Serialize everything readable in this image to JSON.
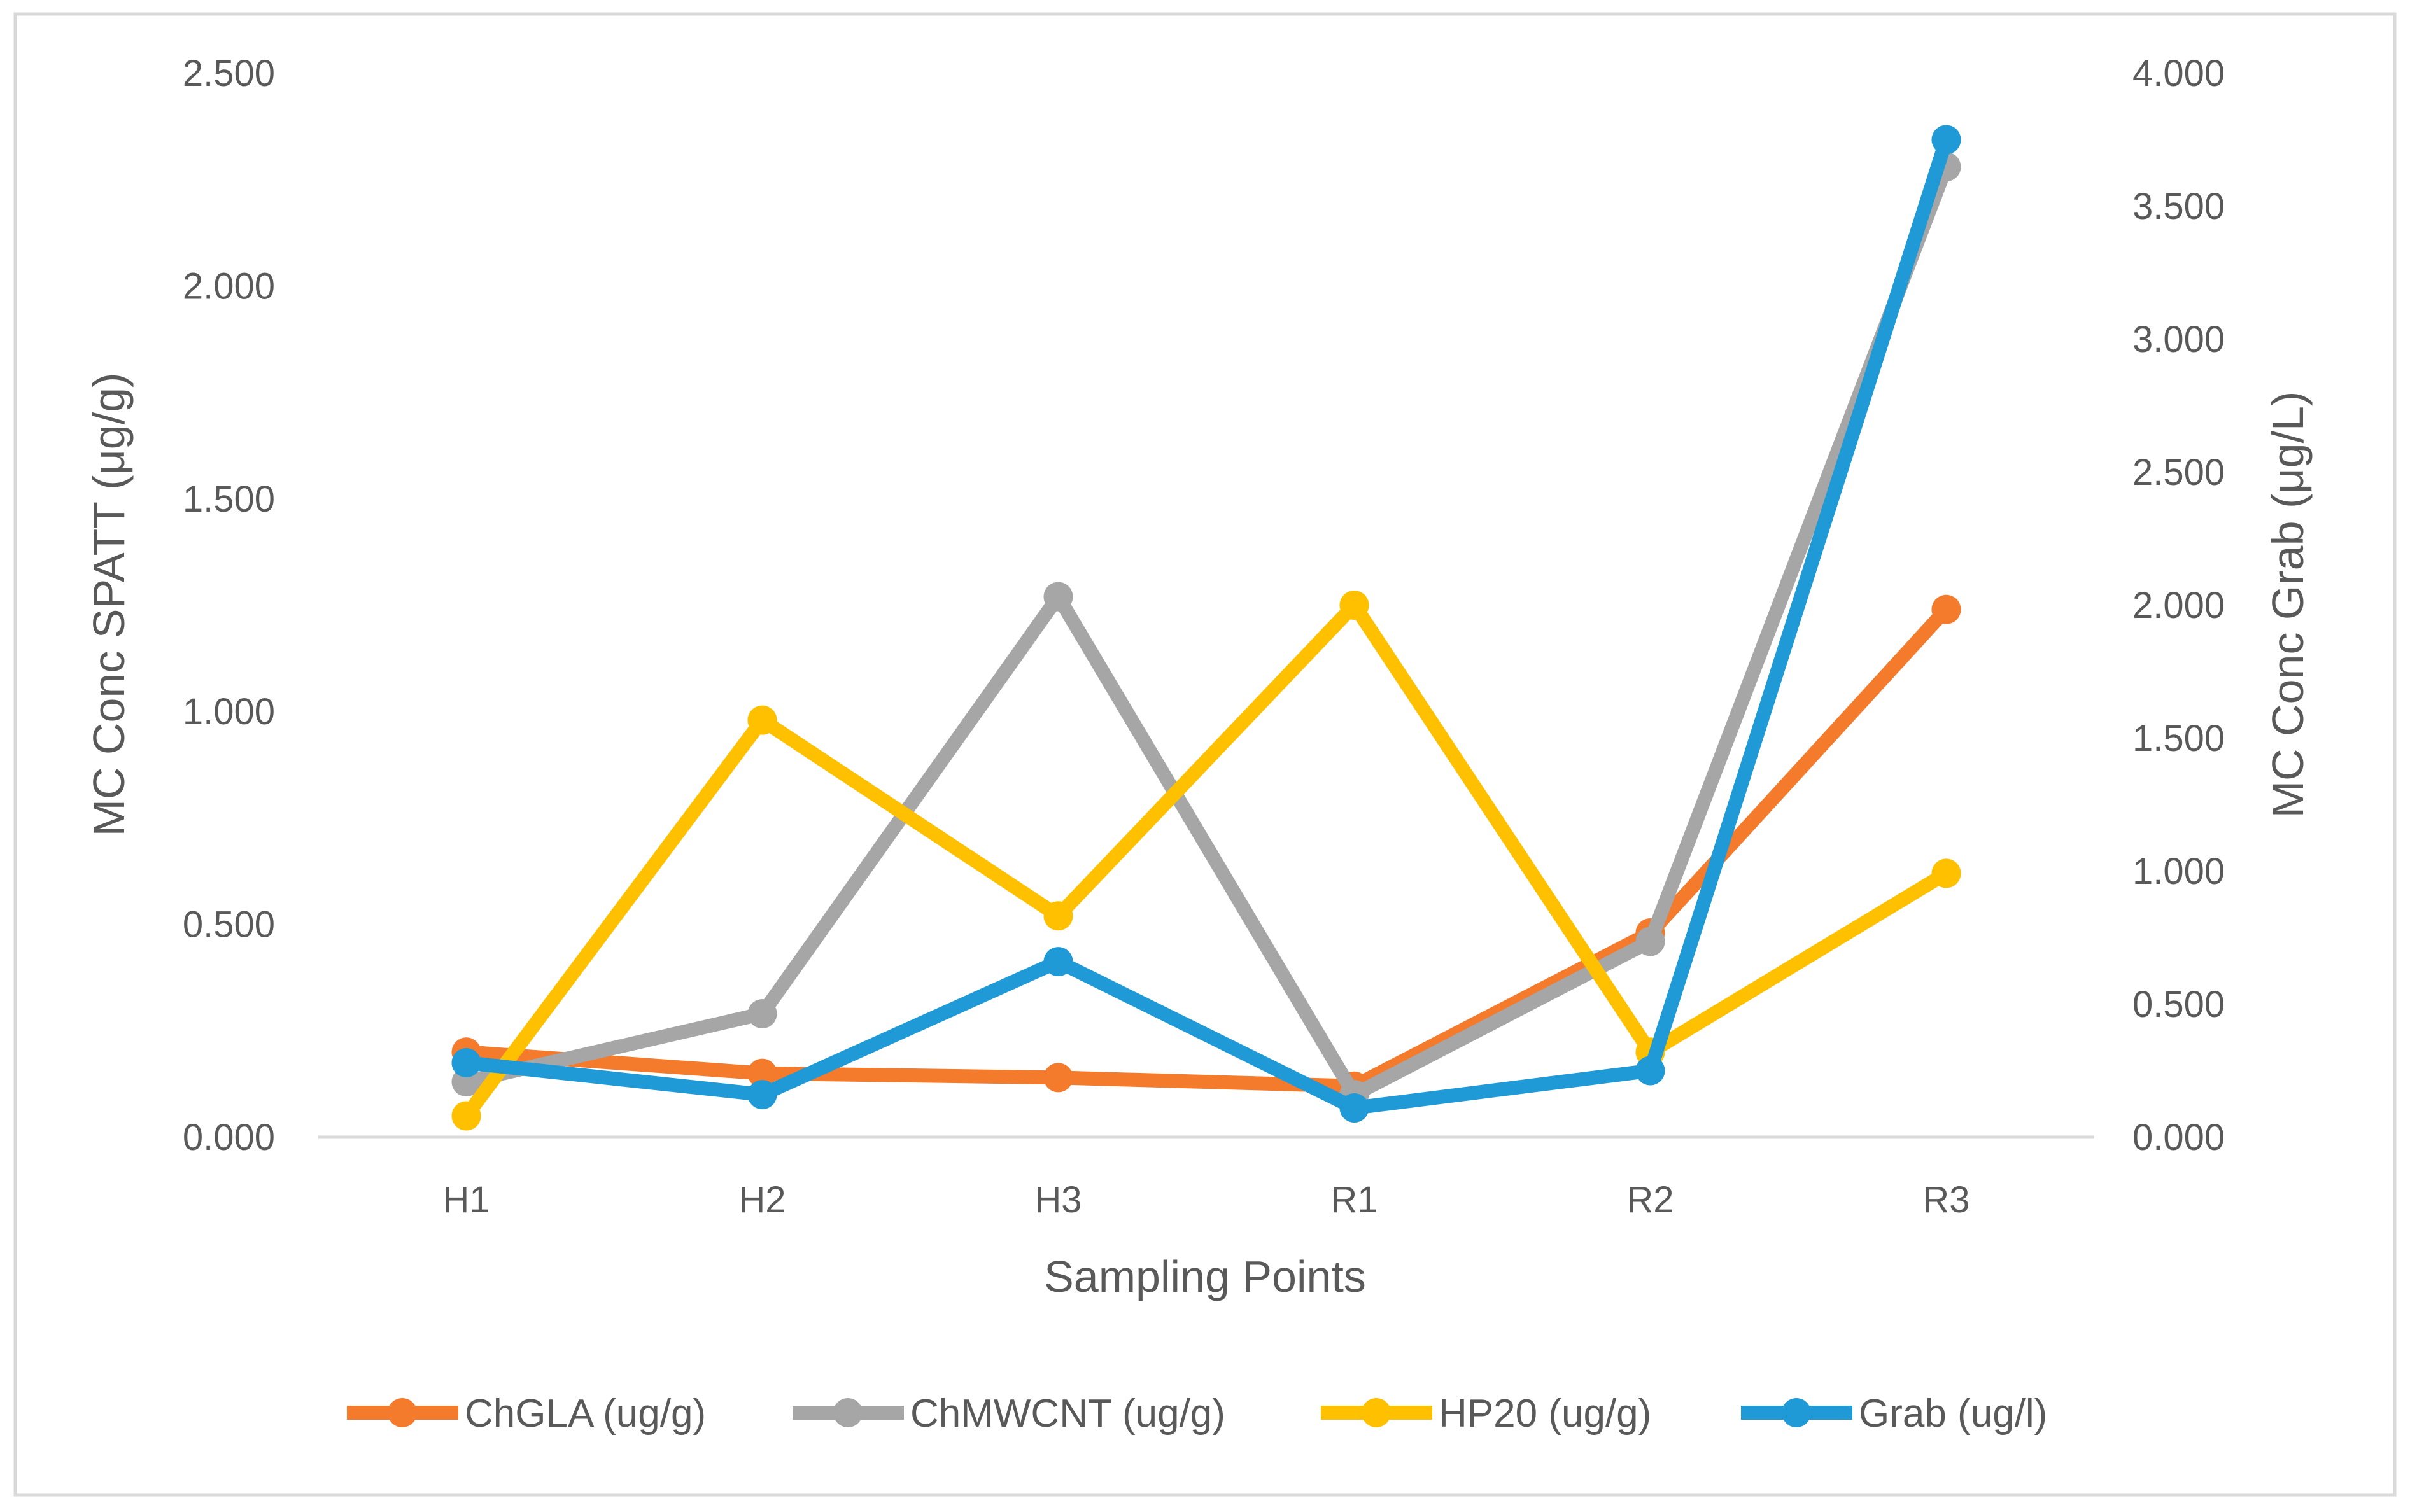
{
  "chart_data": {
    "type": "line",
    "title": "",
    "xlabel": "Sampling Points",
    "ylabel": "MC Conc SPATT (μg/g)",
    "y2label": "MC Conc Grab (μg/L)",
    "categories": [
      "H1",
      "H2",
      "H3",
      "R1",
      "R2",
      "R3"
    ],
    "ylim": [
      0,
      2.5
    ],
    "y2lim": [
      0,
      4.0
    ],
    "y_ticks": [
      "0.000",
      "0.500",
      "1.000",
      "1.500",
      "2.000",
      "2.500"
    ],
    "y2_ticks": [
      "0.000",
      "0.500",
      "1.000",
      "1.500",
      "2.000",
      "2.500",
      "3.000",
      "3.500",
      "4.000"
    ],
    "grid": false,
    "legend_position": "bottom",
    "series": [
      {
        "name": "ChGLA (ug/g)",
        "axis": "left",
        "color": "#F47A2C",
        "values": [
          0.2,
          0.15,
          0.14,
          0.12,
          0.48,
          1.24
        ]
      },
      {
        "name": "ChMWCNT (ug/g)",
        "axis": "left",
        "color": "#A6A6A6",
        "values": [
          0.13,
          0.29,
          1.27,
          0.1,
          0.46,
          2.28
        ]
      },
      {
        "name": "HP20 (ug/g)",
        "axis": "left",
        "color": "#FFC000",
        "values": [
          0.05,
          0.98,
          0.52,
          1.25,
          0.2,
          0.62
        ]
      },
      {
        "name": "Grab (ug/l)",
        "axis": "right",
        "color": "#1F9AD6",
        "values": [
          0.28,
          0.16,
          0.66,
          0.11,
          0.25,
          3.75
        ]
      }
    ]
  }
}
